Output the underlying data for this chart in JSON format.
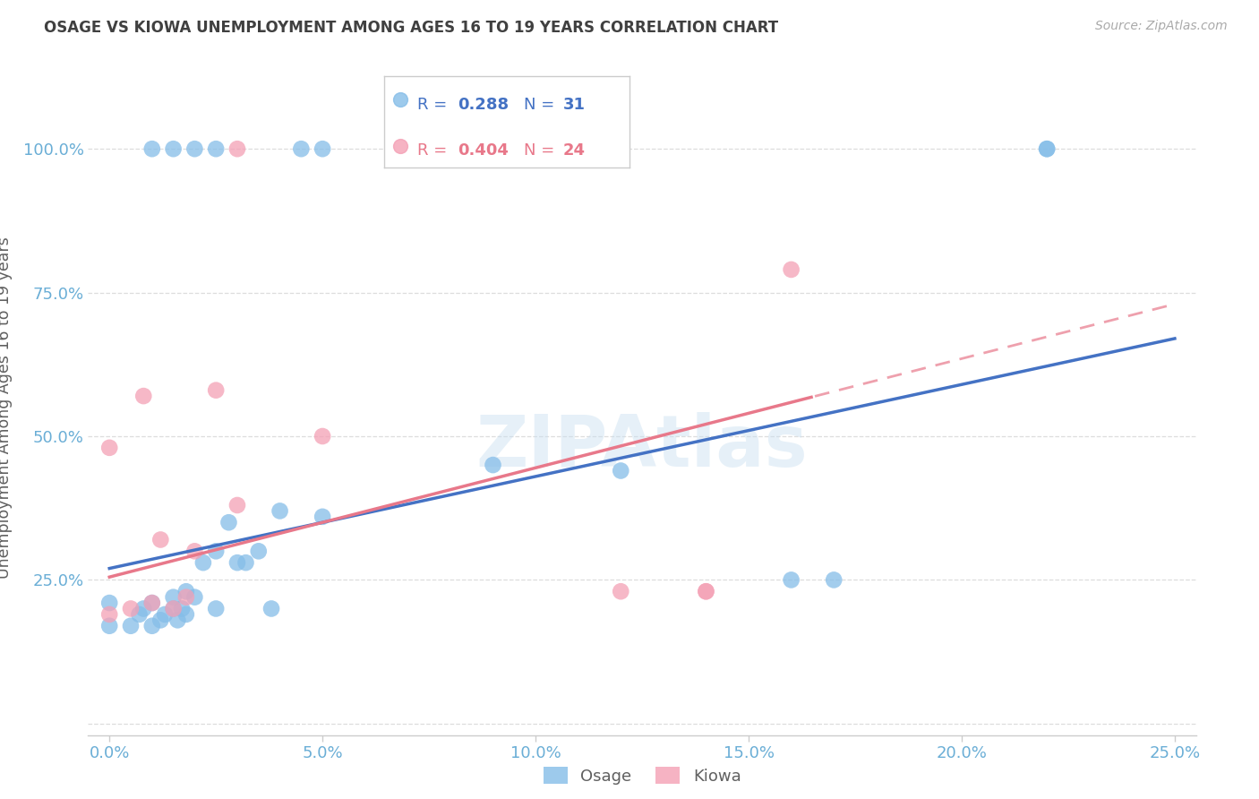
{
  "title": "OSAGE VS KIOWA UNEMPLOYMENT AMONG AGES 16 TO 19 YEARS CORRELATION CHART",
  "source": "Source: ZipAtlas.com",
  "ylabel": "Unemployment Among Ages 16 to 19 years",
  "xlim": [
    -0.005,
    0.255
  ],
  "ylim": [
    -0.02,
    1.12
  ],
  "yticks": [
    0.0,
    0.25,
    0.5,
    0.75,
    1.0
  ],
  "ytick_labels": [
    "",
    "25.0%",
    "50.0%",
    "75.0%",
    "100.0%"
  ],
  "xticks": [
    0.0,
    0.05,
    0.1,
    0.15,
    0.2,
    0.25
  ],
  "xtick_labels": [
    "0.0%",
    "5.0%",
    "10.0%",
    "15.0%",
    "20.0%",
    "25.0%"
  ],
  "osage_color": "#85bde8",
  "kiowa_color": "#f4a0b5",
  "grid_color": "#dddddd",
  "osage_line_color": "#4472c4",
  "kiowa_line_color": "#e8788a",
  "background_color": "#ffffff",
  "title_color": "#404040",
  "axis_label_color": "#606060",
  "tick_color": "#6aaed6",
  "osage_line_intercept": 0.27,
  "osage_line_slope": 1.6,
  "kiowa_line_intercept": 0.255,
  "kiowa_line_slope": 1.9,
  "osage_R": "0.288",
  "osage_N": "31",
  "kiowa_R": "0.404",
  "kiowa_N": "24",
  "osage_x": [
    0.0,
    0.0,
    0.005,
    0.007,
    0.008,
    0.01,
    0.01,
    0.012,
    0.013,
    0.015,
    0.015,
    0.016,
    0.017,
    0.018,
    0.018,
    0.02,
    0.022,
    0.025,
    0.025,
    0.028,
    0.03,
    0.032,
    0.035,
    0.038,
    0.04,
    0.05,
    0.09,
    0.12,
    0.16,
    0.17,
    0.22
  ],
  "osage_y": [
    0.17,
    0.21,
    0.17,
    0.19,
    0.2,
    0.17,
    0.21,
    0.18,
    0.19,
    0.2,
    0.22,
    0.18,
    0.2,
    0.19,
    0.23,
    0.22,
    0.28,
    0.2,
    0.3,
    0.35,
    0.28,
    0.28,
    0.3,
    0.2,
    0.37,
    0.36,
    0.45,
    0.44,
    0.25,
    0.25,
    1.0
  ],
  "kiowa_x": [
    0.0,
    0.0,
    0.005,
    0.008,
    0.01,
    0.012,
    0.015,
    0.018,
    0.02,
    0.025,
    0.03,
    0.05,
    0.12,
    0.14,
    0.14,
    0.16
  ],
  "kiowa_y": [
    0.19,
    0.48,
    0.2,
    0.57,
    0.21,
    0.32,
    0.2,
    0.22,
    0.3,
    0.58,
    0.38,
    0.5,
    0.23,
    0.23,
    0.23,
    0.79
  ],
  "osage_top_x": [
    0.01,
    0.015,
    0.02,
    0.025,
    0.045,
    0.05,
    0.22
  ],
  "osage_top_y": [
    1.0,
    1.0,
    1.0,
    1.0,
    1.0,
    1.0,
    1.0
  ],
  "kiowa_top_x": [
    0.03
  ],
  "kiowa_top_y": [
    1.0
  ]
}
